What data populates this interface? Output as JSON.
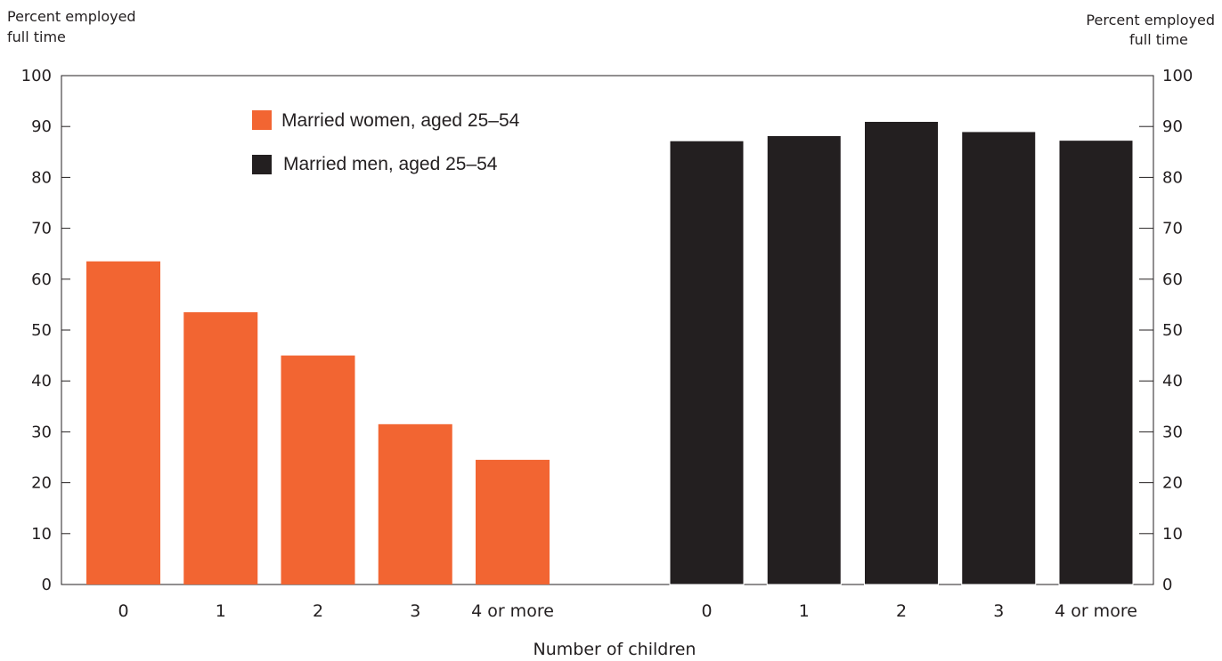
{
  "chart_data": {
    "type": "bar",
    "ylabel_left": [
      "Percent employed",
      "full time"
    ],
    "ylabel_right": [
      "Percent employed",
      "full time"
    ],
    "xlabel": "Number of children",
    "ylim": [
      0,
      100
    ],
    "yticks": [
      0,
      10,
      20,
      30,
      40,
      50,
      60,
      70,
      80,
      90,
      100
    ],
    "grid": false,
    "legend_position": "top-left",
    "series": [
      {
        "name": "Married women, aged 25–54",
        "color": "#f26532",
        "categories": [
          "0",
          "1",
          "2",
          "3",
          "4 or more"
        ],
        "values": [
          63.5,
          53.5,
          45,
          31.5,
          24.5
        ]
      },
      {
        "name": "Married men, aged 25–54",
        "color": "#231f20",
        "categories": [
          "0",
          "1",
          "2",
          "3",
          "4 or more"
        ],
        "values": [
          87.2,
          88.2,
          91,
          89,
          87.3
        ]
      }
    ]
  }
}
